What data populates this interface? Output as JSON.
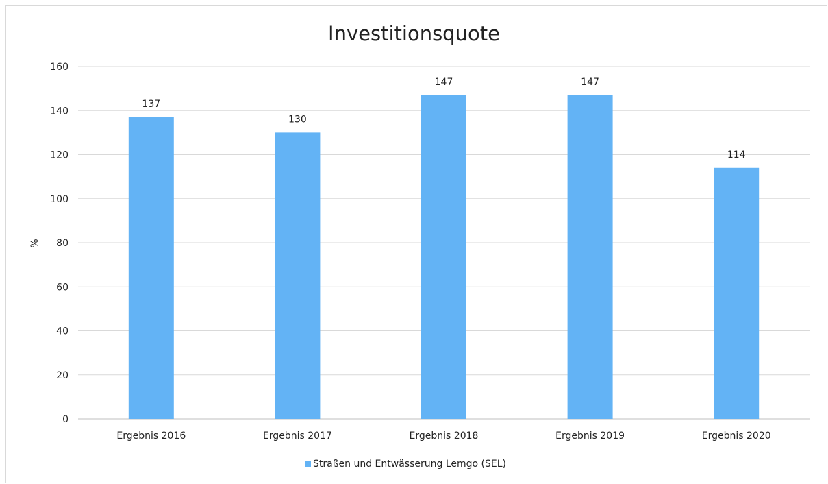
{
  "chart_data": {
    "type": "bar",
    "title": "Investitionsquote",
    "ylabel": "%",
    "xlabel": "",
    "categories": [
      "Ergebnis 2016",
      "Ergebnis 2017",
      "Ergebnis 2018",
      "Ergebnis 2019",
      "Ergebnis 2020"
    ],
    "series": [
      {
        "name": "Straßen und Entwässerung Lemgo (SEL)",
        "values": [
          137,
          130,
          147,
          147,
          114
        ],
        "color": "#63b3f5"
      }
    ],
    "ylim": [
      0,
      160
    ],
    "yticks": [
      0,
      20,
      40,
      60,
      80,
      100,
      120,
      140,
      160
    ],
    "grid": true,
    "legend": "bottom",
    "data_labels": true
  }
}
